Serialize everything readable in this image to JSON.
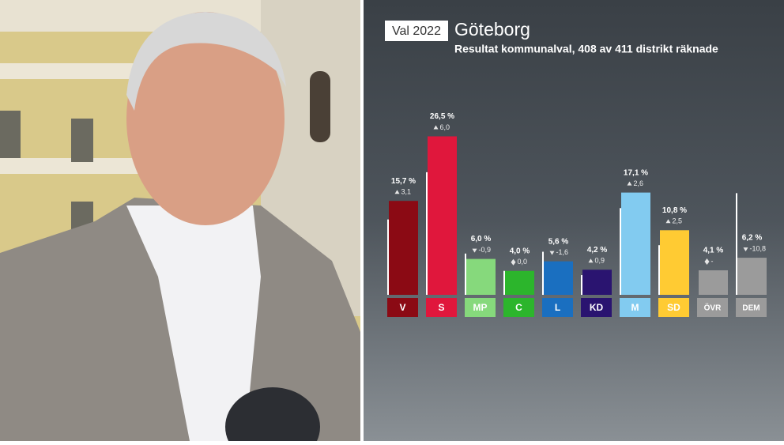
{
  "chart_data": {
    "type": "bar",
    "label": "Val 2022",
    "title": "Göteborg",
    "subtitle": "Resultat kommunalval, 408 av 411 distrikt räknade",
    "categories": [
      "V",
      "S",
      "MP",
      "C",
      "L",
      "KD",
      "M",
      "SD",
      "ÖVR",
      "DEM"
    ],
    "values": [
      15.7,
      26.5,
      6.0,
      4.0,
      5.6,
      4.2,
      17.1,
      10.8,
      4.1,
      6.2
    ],
    "value_labels": [
      "15,7 %",
      "26,5 %",
      "6,0 %",
      "4,0 %",
      "5,6 %",
      "4,2 %",
      "17,1 %",
      "10,8 %",
      "4,1 %",
      "6,2 %"
    ],
    "changes": [
      3.1,
      6.0,
      -0.9,
      0.0,
      -1.6,
      0.9,
      2.6,
      2.5,
      null,
      -10.8
    ],
    "change_labels": [
      "3,1",
      "6,0",
      "-0,9",
      "0,0",
      "-1,6",
      "0,9",
      "2,6",
      "2,5",
      "-",
      "-10,8"
    ],
    "previous_values": [
      12.6,
      20.5,
      6.9,
      4.0,
      7.2,
      3.3,
      14.5,
      8.3,
      null,
      17.0
    ],
    "colors": [
      "#8b0a14",
      "#e0173c",
      "#86d97c",
      "#2cb52c",
      "#1a6fc0",
      "#2a1470",
      "#82cbf0",
      "#ffcb33",
      "#9b9b9b",
      "#9b9b9b"
    ],
    "ylim": [
      0,
      30
    ]
  }
}
